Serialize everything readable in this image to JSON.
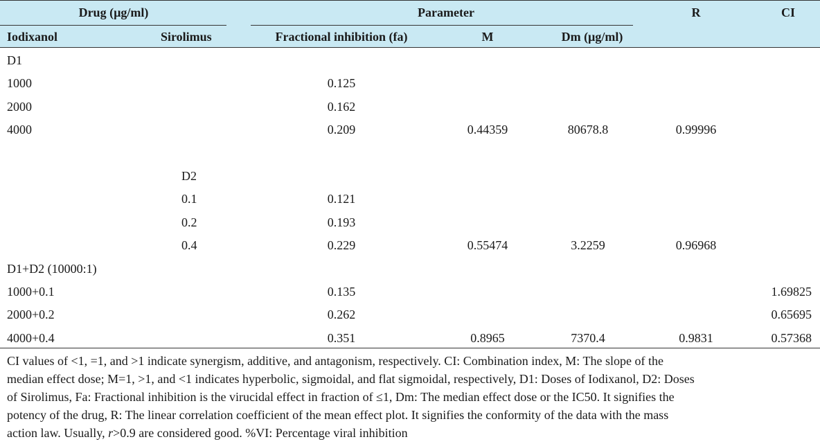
{
  "table": {
    "header": {
      "drug": "Drug (µg/ml)",
      "parameter": "Parameter",
      "r": "R",
      "ci": "CI",
      "iodixanol": "Iodixanol",
      "sirolimus": "Sirolimus",
      "fa": "Fractional inhibition (fa)",
      "m": "M",
      "dm": "Dm (µg/ml)"
    },
    "rows": [
      {
        "iodixanol": "D1",
        "sirolimus": "",
        "fa": "",
        "m": "",
        "dm": "",
        "r": "",
        "ci": ""
      },
      {
        "iodixanol": "1000",
        "sirolimus": "",
        "fa": "0.125",
        "m": "",
        "dm": "",
        "r": "",
        "ci": ""
      },
      {
        "iodixanol": "2000",
        "sirolimus": "",
        "fa": "0.162",
        "m": "",
        "dm": "",
        "r": "",
        "ci": ""
      },
      {
        "iodixanol": "4000",
        "sirolimus": "",
        "fa": "0.209",
        "m": "0.44359",
        "dm": "80678.8",
        "r": "0.99996",
        "ci": ""
      },
      {
        "iodixanol": "",
        "sirolimus": "",
        "fa": "",
        "m": "",
        "dm": "",
        "r": "",
        "ci": ""
      },
      {
        "iodixanol": "",
        "sirolimus": "D2",
        "fa": "",
        "m": "",
        "dm": "",
        "r": "",
        "ci": ""
      },
      {
        "iodixanol": "",
        "sirolimus": "0.1",
        "fa": "0.121",
        "m": "",
        "dm": "",
        "r": "",
        "ci": ""
      },
      {
        "iodixanol": "",
        "sirolimus": "0.2",
        "fa": "0.193",
        "m": "",
        "dm": "",
        "r": "",
        "ci": ""
      },
      {
        "iodixanol": "",
        "sirolimus": "0.4",
        "fa": "0.229",
        "m": "0.55474",
        "dm": "3.2259",
        "r": "0.96968",
        "ci": ""
      },
      {
        "iodixanol": "D1+D2 (10000:1)",
        "sirolimus": "",
        "fa": "",
        "m": "",
        "dm": "",
        "r": "",
        "ci": ""
      },
      {
        "iodixanol": "1000+0.1",
        "sirolimus": "",
        "fa": "0.135",
        "m": "",
        "dm": "",
        "r": "",
        "ci": "1.69825"
      },
      {
        "iodixanol": "2000+0.2",
        "sirolimus": "",
        "fa": "0.262",
        "m": "",
        "dm": "",
        "r": "",
        "ci": "0.65695"
      },
      {
        "iodixanol": "4000+0.4",
        "sirolimus": "",
        "fa": "0.351",
        "m": "0.8965",
        "dm": "7370.4",
        "r": "0.9831",
        "ci": "0.57368"
      }
    ]
  },
  "footnote": {
    "line1": "CI values of <1, =1, and >1 indicate synergism, additive, and antagonism, respectively. CI: Combination index, M: The slope of the",
    "line2": "median effect dose; M=1, >1, and <1 indicates hyperbolic, sigmoidal, and flat sigmoidal, respectively, D1: Doses of Iodixanol, D2: Doses",
    "line3": "of Sirolimus, Fa: Fractional inhibition is the virucidal effect in fraction of ≤1, Dm: The median effect dose or the IC50. It signifies the",
    "line4": "potency of the drug, R: The linear correlation coefficient of the mean effect plot. It signifies the conformity of the data with the mass",
    "line5a": "action law. Usually, ",
    "line5b": "r",
    "line5c": ">0.9 are considered good. %VI: Percentage viral inhibition"
  }
}
